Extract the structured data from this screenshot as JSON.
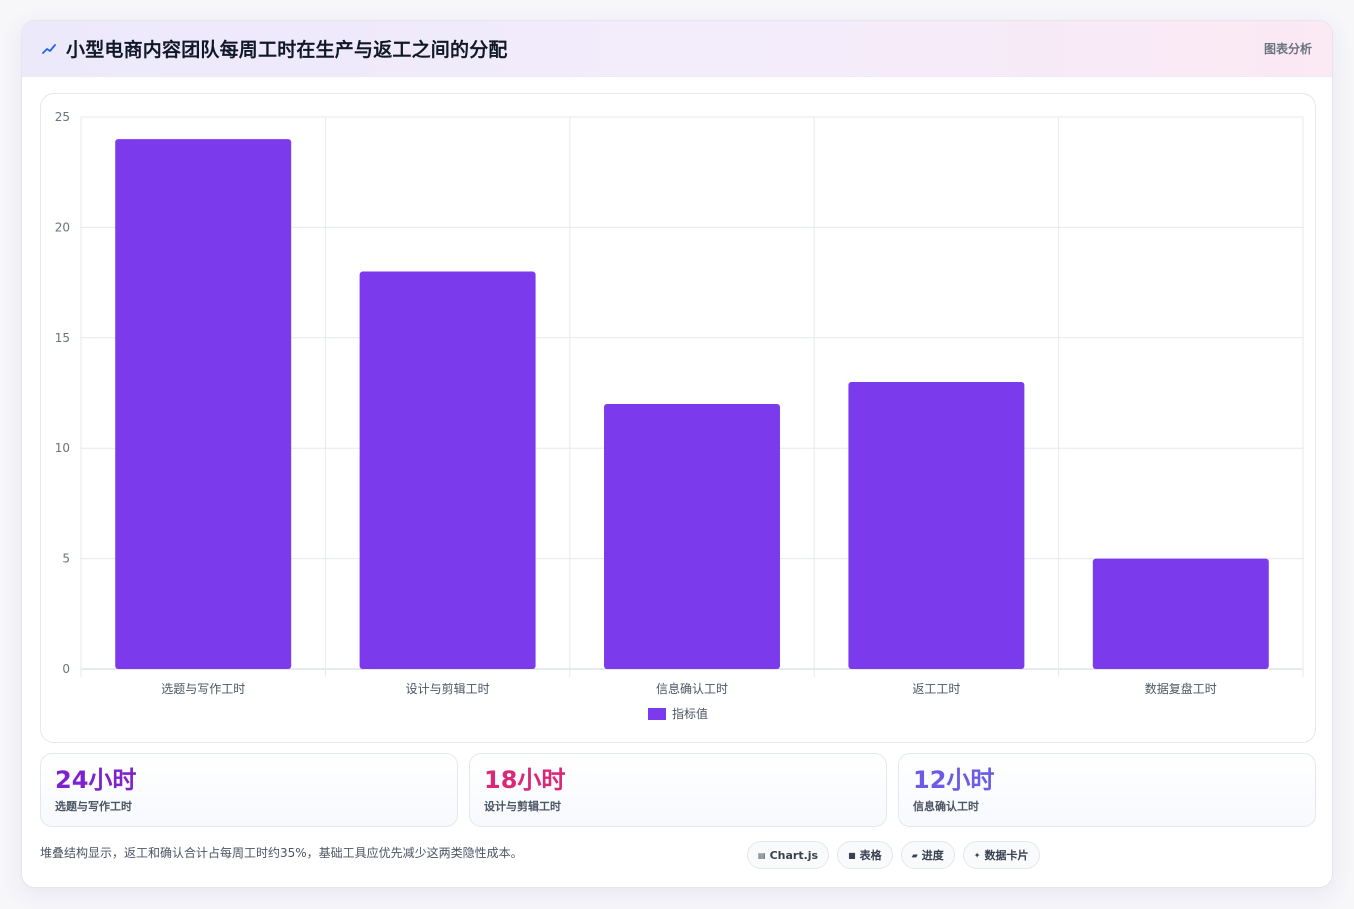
{
  "header": {
    "title": "小型电商内容团队每周工时在生产与返工之间的分配",
    "tag": "图表分析"
  },
  "chart_data": {
    "type": "bar",
    "categories": [
      "选题与写作工时",
      "设计与剪辑工时",
      "信息确认工时",
      "返工工时",
      "数据复盘工时"
    ],
    "series": [
      {
        "name": "指标值",
        "values": [
          24,
          18,
          12,
          13,
          5
        ]
      }
    ],
    "ylim": [
      0,
      25
    ],
    "yticks": [
      0,
      5,
      10,
      15,
      20,
      25
    ],
    "grid": true,
    "legend": "bottom",
    "color": "#7c3aed"
  },
  "stats": [
    {
      "value": "24小时",
      "label": "选题与写作工时",
      "color": "#7e22ce"
    },
    {
      "value": "18小时",
      "label": "设计与剪辑工时",
      "color": "#db2777"
    },
    {
      "value": "12小时",
      "label": "信息确认工时",
      "color": "#6d5ae6"
    }
  ],
  "footer": {
    "note": "堆叠结构显示，返工和确认合计占每周工时约35%，基础工具应优先减少这两类隐性成本。",
    "pills": [
      {
        "icon": "chart-icon",
        "glyph": "▤",
        "label": "Chart.js"
      },
      {
        "icon": "table-icon",
        "glyph": "■",
        "label": "表格"
      },
      {
        "icon": "progress-icon",
        "glyph": "▰",
        "label": "进度"
      },
      {
        "icon": "card-icon",
        "glyph": "✦",
        "label": "数据卡片"
      }
    ]
  }
}
